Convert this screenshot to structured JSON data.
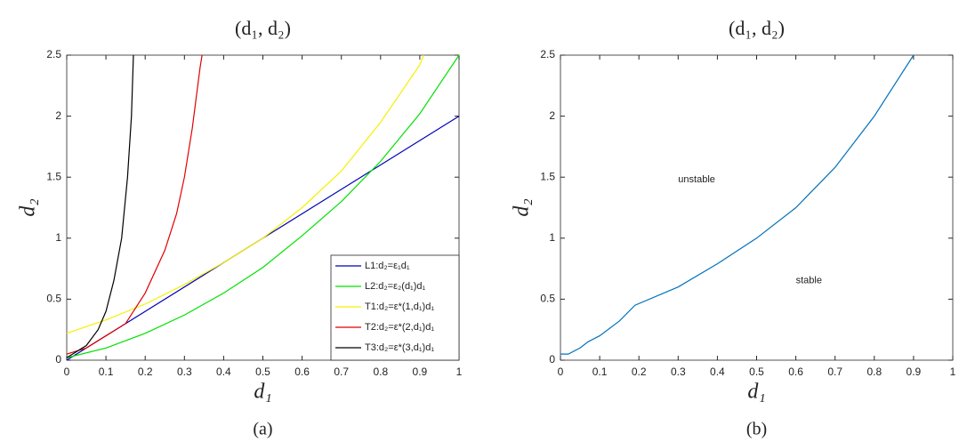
{
  "chart_data": [
    {
      "type": "line",
      "title": "(d₁, d₂)",
      "xlabel": "d₁",
      "ylabel": "d₂",
      "caption": "(a)",
      "xlim": [
        0,
        1
      ],
      "ylim": [
        0,
        2.5
      ],
      "xticks": [
        0,
        0.1,
        0.2,
        0.3,
        0.4,
        0.5,
        0.6,
        0.7,
        0.8,
        0.9,
        1
      ],
      "yticks": [
        0,
        0.5,
        1,
        1.5,
        2,
        2.5
      ],
      "legend": "lower right",
      "series": [
        {
          "name": "L1:d₂=ε₁d₁",
          "color": "#0000b4",
          "x": [
            0,
            0.5,
            1
          ],
          "values": [
            0,
            1,
            2
          ]
        },
        {
          "name": "L2:d₂=ε₂(d₁)d₁",
          "color": "#00e000",
          "x": [
            0,
            0.1,
            0.2,
            0.3,
            0.4,
            0.5,
            0.6,
            0.7,
            0.8,
            0.9,
            1
          ],
          "values": [
            0.02,
            0.1,
            0.22,
            0.37,
            0.55,
            0.76,
            1.02,
            1.3,
            1.63,
            2.02,
            2.5
          ]
        },
        {
          "name": "T1:d₂=ε*(1,d₁)d₁",
          "color": "#f5f000",
          "x": [
            0,
            0.1,
            0.2,
            0.3,
            0.4,
            0.5,
            0.6,
            0.7,
            0.8,
            0.9,
            0.91
          ],
          "values": [
            0.22,
            0.33,
            0.46,
            0.62,
            0.8,
            1.0,
            1.25,
            1.55,
            1.95,
            2.42,
            2.5
          ]
        },
        {
          "name": "T2:d₂=ε*(2,d₁)d₁",
          "color": "#e00000",
          "x": [
            0,
            0.05,
            0.1,
            0.15,
            0.2,
            0.25,
            0.28,
            0.3,
            0.32,
            0.34,
            0.345
          ],
          "values": [
            0.05,
            0.1,
            0.2,
            0.3,
            0.55,
            0.9,
            1.2,
            1.5,
            1.9,
            2.4,
            2.5
          ]
        },
        {
          "name": "T3:d₂=ε*(3,d₁)d₁",
          "color": "#000000",
          "x": [
            0,
            0.05,
            0.08,
            0.1,
            0.12,
            0.14,
            0.155,
            0.165,
            0.17
          ],
          "values": [
            0.02,
            0.12,
            0.25,
            0.4,
            0.65,
            1.0,
            1.5,
            2.0,
            2.5
          ]
        }
      ]
    },
    {
      "type": "line",
      "title": "(d₁, d₂)",
      "xlabel": "d₁",
      "ylabel": "d₂",
      "caption": "(b)",
      "xlim": [
        0,
        1
      ],
      "ylim": [
        0,
        2.5
      ],
      "xticks": [
        0,
        0.1,
        0.2,
        0.3,
        0.4,
        0.5,
        0.6,
        0.7,
        0.8,
        0.9,
        1
      ],
      "yticks": [
        0,
        0.5,
        1,
        1.5,
        2,
        2.5
      ],
      "annotations": [
        "unstable",
        "stable"
      ],
      "series": [
        {
          "color": "#0072bd",
          "x": [
            0,
            0.02,
            0.05,
            0.07,
            0.1,
            0.15,
            0.19,
            0.3,
            0.4,
            0.5,
            0.6,
            0.7,
            0.8,
            0.9
          ],
          "values": [
            0.05,
            0.05,
            0.1,
            0.15,
            0.2,
            0.32,
            0.45,
            0.6,
            0.79,
            1.0,
            1.25,
            1.58,
            2.0,
            2.5
          ]
        }
      ]
    }
  ]
}
